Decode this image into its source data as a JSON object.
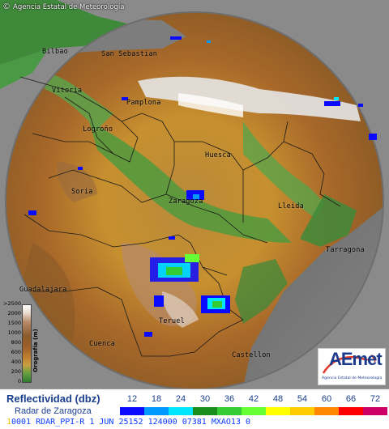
{
  "credit": {
    "symbol": "©",
    "text": "Agencia Estatal de Meteorología"
  },
  "cities": [
    {
      "name": "Bilbao"
    },
    {
      "name": "San Sebastian"
    },
    {
      "name": "Vitoria"
    },
    {
      "name": "Pamplona"
    },
    {
      "name": "Logroño"
    },
    {
      "name": "Huesca"
    },
    {
      "name": "Soria"
    },
    {
      "name": "Zaragoza"
    },
    {
      "name": "Lleida"
    },
    {
      "name": "Tarragona"
    },
    {
      "name": "Guadalajara"
    },
    {
      "name": "Teruel"
    },
    {
      "name": "Cuenca"
    },
    {
      "name": "Castellon"
    }
  ],
  "elevation_legend": {
    "title": "Orografía (m)",
    "ticks": [
      ">2500",
      "2000",
      "1500",
      "1000",
      "800",
      "600",
      "400",
      "200",
      "0"
    ]
  },
  "logo": {
    "text": "AEmet",
    "subtitle": "Agencia Estatal de Meteorología"
  },
  "footer": {
    "label": "Reflectividad (dbz)",
    "radar": "Radar de Zaragoza",
    "scale": [
      {
        "value": "12",
        "color": "#0a0aff"
      },
      {
        "value": "18",
        "color": "#0099ff"
      },
      {
        "value": "24",
        "color": "#00e6ff"
      },
      {
        "value": "30",
        "color": "#1a8c1a"
      },
      {
        "value": "36",
        "color": "#33cc33"
      },
      {
        "value": "42",
        "color": "#66ff33"
      },
      {
        "value": "48",
        "color": "#ffff00"
      },
      {
        "value": "54",
        "color": "#ffcc00"
      },
      {
        "value": "60",
        "color": "#ff8800"
      },
      {
        "value": "66",
        "color": "#ff0000"
      },
      {
        "value": "72",
        "color": "#cc0066"
      }
    ],
    "status_index": "1",
    "status": "0001  RDAR_PPI-R     1 JUN 25152 124000 07381 MXAO13 0"
  },
  "colors": {
    "brand_blue": "#1a3e8c",
    "outside_range": "#8a8a8a",
    "status_blue": "#0a3cff"
  }
}
